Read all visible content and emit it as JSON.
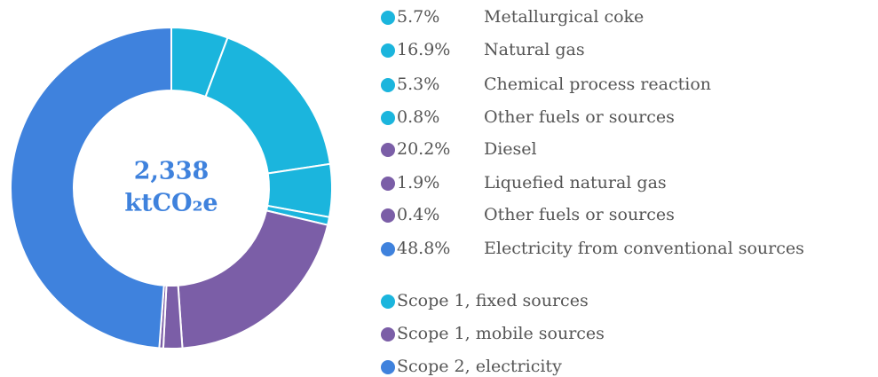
{
  "chart_data": {
    "type": "donut",
    "categories": [
      "Metallurgical coke",
      "Natural gas",
      "Chemical process reaction",
      "Other fuels or sources",
      "Diesel",
      "Liquefied natural gas",
      "Other fuels or sources",
      "Electricity from conventional sources"
    ],
    "values": [
      5.7,
      16.9,
      5.3,
      0.8,
      20.2,
      1.9,
      0.4,
      48.8
    ],
    "value_labels": [
      "5.7%",
      "16.9%",
      "5.3%",
      "0.8%",
      "20.2%",
      "1.9%",
      "0.4%",
      "48.8%"
    ],
    "colors": [
      "#1bb5dd",
      "#1bb5dd",
      "#1bb5dd",
      "#1bb5dd",
      "#7b5ea7",
      "#7b5ea7",
      "#7b5ea7",
      "#3f82dd"
    ],
    "annotations": [
      "2,338",
      "ktCO₂e"
    ],
    "groups": [
      {
        "name": "Scope 1, fixed sources",
        "color": "#1bb5dd"
      },
      {
        "name": "Scope 1, mobile sources",
        "color": "#7b5ea7"
      },
      {
        "name": "Scope 2, electricity",
        "color": "#3f82dd"
      }
    ]
  }
}
